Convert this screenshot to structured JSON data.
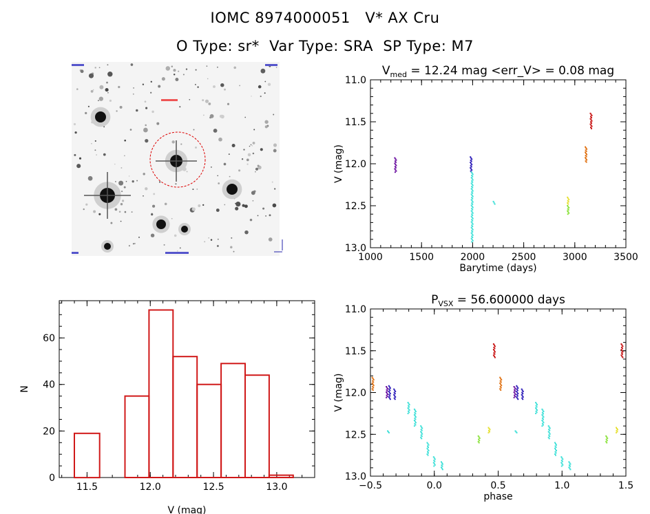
{
  "header": {
    "line1": "IOMC 8974000051   V* AX Cru",
    "line2": "O Type: sr*  Var Type: SRA  SP Type: M7"
  },
  "chart_data": [
    {
      "type": "image",
      "panel": "star-field-image",
      "description": "Star field finder image",
      "marker": "red circle centred on target star"
    },
    {
      "type": "scatter",
      "panel": "light-curve",
      "title_main": "V",
      "title_sub": "med",
      "title_rest": " = 12.24 mag <err_V> = 0.08 mag",
      "xlabel": "Barytime (days)",
      "ylabel": "V (mag)",
      "xlim": [
        1000,
        3500
      ],
      "ylim": [
        13.0,
        11.0
      ],
      "y_inverted": true,
      "xticks": [
        1000,
        1500,
        2000,
        2500,
        3000,
        3500
      ],
      "yticks": [
        11.0,
        11.5,
        12.0,
        12.5,
        13.0
      ],
      "ytick_labels": [
        "11.0",
        "11.5",
        "12.0",
        "12.5",
        "13.0"
      ],
      "groups": [
        {
          "color": "#6a0fa0",
          "x": 1245,
          "y": [
            11.93,
            12.1
          ]
        },
        {
          "color": "#2a1ab8",
          "x": 1985,
          "y": [
            11.92,
            12.1
          ]
        },
        {
          "color": "#3fe0d8",
          "x": 1995,
          "y": [
            12.1,
            12.93
          ]
        },
        {
          "color": "#3fe0d8",
          "x": 2210,
          "y": [
            12.45,
            12.48
          ]
        },
        {
          "color": "#8ae23a",
          "x": 2935,
          "y": [
            12.5,
            12.6
          ]
        },
        {
          "color": "#e6e030",
          "x": 2935,
          "y": [
            12.4,
            12.48
          ]
        },
        {
          "color": "#e07010",
          "x": 3110,
          "y": [
            11.8,
            11.98
          ]
        },
        {
          "color": "#c81414",
          "x": 3160,
          "y": [
            11.4,
            11.58
          ]
        }
      ]
    },
    {
      "type": "bar",
      "panel": "histogram",
      "xlabel": "V (mag)",
      "ylabel": "N",
      "xlim": [
        11.28,
        13.3
      ],
      "ylim": [
        0,
        76
      ],
      "xticks": [
        11.5,
        12.0,
        12.5,
        13.0
      ],
      "xtick_labels": [
        "11.5",
        "12.0",
        "12.5",
        "13.0"
      ],
      "yticks": [
        0,
        20,
        40,
        60
      ],
      "bins": [
        {
          "x0": 11.4,
          "x1": 11.6,
          "value": 19
        },
        {
          "x0": 11.6,
          "x1": 11.8,
          "value": 0
        },
        {
          "x0": 11.8,
          "x1": 11.99,
          "value": 35
        },
        {
          "x0": 11.99,
          "x1": 12.18,
          "value": 72
        },
        {
          "x0": 12.18,
          "x1": 12.37,
          "value": 52
        },
        {
          "x0": 12.37,
          "x1": 12.56,
          "value": 40
        },
        {
          "x0": 12.56,
          "x1": 12.75,
          "value": 49
        },
        {
          "x0": 12.75,
          "x1": 12.94,
          "value": 44
        },
        {
          "x0": 12.94,
          "x1": 13.13,
          "value": 1
        }
      ],
      "bar_color": "#d01818"
    },
    {
      "type": "scatter",
      "panel": "phased-curve",
      "title_main": "P",
      "title_sub": "VSX",
      "title_rest": " = 56.600000 days",
      "xlabel": "phase",
      "ylabel": "V (mag)",
      "xlim": [
        -0.5,
        1.5
      ],
      "ylim": [
        13.0,
        11.0
      ],
      "y_inverted": true,
      "xticks": [
        -0.5,
        0.0,
        0.5,
        1.0,
        1.5
      ],
      "xtick_labels": [
        "−0.5",
        "0.0",
        "0.5",
        "1.0",
        "1.5"
      ],
      "yticks": [
        11.0,
        11.5,
        12.0,
        12.5,
        13.0
      ],
      "ytick_labels": [
        "11.0",
        "11.5",
        "12.0",
        "12.5",
        "13.0"
      ],
      "groups": [
        {
          "color": "#e07010",
          "x": -0.48,
          "y": [
            11.82,
            11.97
          ]
        },
        {
          "color": "#6a0fa0",
          "x": -0.37,
          "y": [
            11.93,
            12.06
          ]
        },
        {
          "color": "#2a1ab8",
          "x": -0.35,
          "y": [
            11.92,
            12.08
          ]
        },
        {
          "color": "#2a1ab8",
          "x": -0.31,
          "y": [
            11.96,
            12.08
          ]
        },
        {
          "color": "#3fe0d8",
          "x": -0.36,
          "y": [
            12.46,
            12.48
          ]
        },
        {
          "color": "#3fe0d8",
          "x": -0.2,
          "y": [
            12.12,
            12.25
          ]
        },
        {
          "color": "#3fe0d8",
          "x": -0.15,
          "y": [
            12.2,
            12.4
          ]
        },
        {
          "color": "#3fe0d8",
          "x": -0.1,
          "y": [
            12.4,
            12.55
          ]
        },
        {
          "color": "#3fe0d8",
          "x": -0.05,
          "y": [
            12.6,
            12.75
          ]
        },
        {
          "color": "#3fe0d8",
          "x": 0.0,
          "y": [
            12.77,
            12.88
          ]
        },
        {
          "color": "#3fe0d8",
          "x": 0.06,
          "y": [
            12.83,
            12.92
          ]
        },
        {
          "color": "#8ae23a",
          "x": 0.35,
          "y": [
            12.52,
            12.6
          ]
        },
        {
          "color": "#e6e030",
          "x": 0.43,
          "y": [
            12.42,
            12.48
          ]
        },
        {
          "color": "#c81414",
          "x": 0.47,
          "y": [
            11.42,
            11.58
          ]
        },
        {
          "color": "#e07010",
          "x": 0.52,
          "y": [
            11.82,
            11.97
          ]
        },
        {
          "color": "#6a0fa0",
          "x": 0.63,
          "y": [
            11.93,
            12.06
          ]
        },
        {
          "color": "#2a1ab8",
          "x": 0.65,
          "y": [
            11.92,
            12.08
          ]
        },
        {
          "color": "#2a1ab8",
          "x": 0.69,
          "y": [
            11.96,
            12.08
          ]
        },
        {
          "color": "#3fe0d8",
          "x": 0.64,
          "y": [
            12.46,
            12.48
          ]
        },
        {
          "color": "#3fe0d8",
          "x": 0.8,
          "y": [
            12.12,
            12.25
          ]
        },
        {
          "color": "#3fe0d8",
          "x": 0.85,
          "y": [
            12.2,
            12.4
          ]
        },
        {
          "color": "#3fe0d8",
          "x": 0.9,
          "y": [
            12.4,
            12.55
          ]
        },
        {
          "color": "#3fe0d8",
          "x": 0.95,
          "y": [
            12.6,
            12.75
          ]
        },
        {
          "color": "#3fe0d8",
          "x": 1.0,
          "y": [
            12.77,
            12.88
          ]
        },
        {
          "color": "#3fe0d8",
          "x": 1.06,
          "y": [
            12.83,
            12.92
          ]
        },
        {
          "color": "#8ae23a",
          "x": 1.35,
          "y": [
            12.52,
            12.6
          ]
        },
        {
          "color": "#e6e030",
          "x": 1.43,
          "y": [
            12.42,
            12.48
          ]
        },
        {
          "color": "#c81414",
          "x": 1.47,
          "y": [
            11.42,
            11.58
          ]
        }
      ]
    }
  ]
}
